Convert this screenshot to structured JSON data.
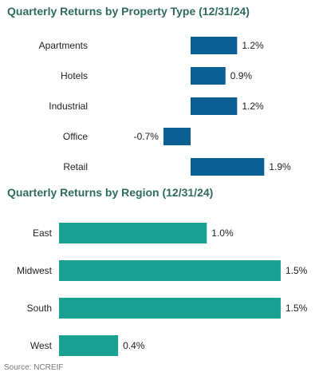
{
  "source": "Source: NCREIF",
  "chart_data": [
    {
      "type": "bar",
      "orientation": "horizontal",
      "title": "Quarterly Returns by Property Type (12/31/24)",
      "categories": [
        "Apartments",
        "Hotels",
        "Industrial",
        "Office",
        "Retail"
      ],
      "values": [
        1.2,
        0.9,
        1.2,
        -0.7,
        1.9
      ],
      "data_labels": [
        "1.2%",
        "0.9%",
        "1.2%",
        "-0.7%",
        "1.9%"
      ],
      "color": "#0b5e93",
      "xlim": [
        -1.0,
        2.1
      ],
      "grid": false,
      "legend": "none"
    },
    {
      "type": "bar",
      "orientation": "horizontal",
      "title": "Quarterly Returns by Region (12/31/24)",
      "categories": [
        "East",
        "Midwest",
        "South",
        "West"
      ],
      "values": [
        1.0,
        1.5,
        1.5,
        0.4
      ],
      "data_labels": [
        "1.0%",
        "1.5%",
        "1.5%",
        "0.4%"
      ],
      "color": "#18a091",
      "xlim": [
        0,
        1.7
      ],
      "grid": false,
      "legend": "none"
    }
  ]
}
